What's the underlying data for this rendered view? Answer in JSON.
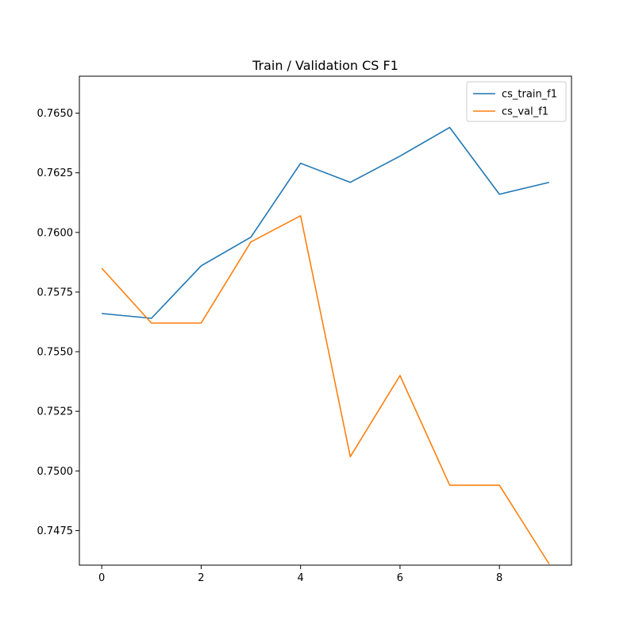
{
  "chart_data": {
    "type": "line",
    "title": "Train / Validation CS F1",
    "xlabel": "",
    "ylabel": "",
    "x": [
      0,
      1,
      2,
      3,
      4,
      5,
      6,
      7,
      8,
      9
    ],
    "xlim": [
      -0.45,
      9.45
    ],
    "ylim": [
      0.74605,
      0.76655
    ],
    "xticks": [
      0,
      2,
      4,
      6,
      8
    ],
    "yticks": [
      0.7475,
      0.75,
      0.7525,
      0.755,
      0.7575,
      0.76,
      0.7625,
      0.765
    ],
    "ytick_labels": [
      "0.7475",
      "0.7500",
      "0.7525",
      "0.7550",
      "0.7575",
      "0.7600",
      "0.7625",
      "0.7650"
    ],
    "grid": false,
    "legend_position": "top-right",
    "series": [
      {
        "name": "cs_train_f1",
        "color": "#1f77b4",
        "values": [
          0.7566,
          0.7564,
          0.7586,
          0.7598,
          0.7629,
          0.7621,
          0.7632,
          0.7644,
          0.7616,
          0.7621
        ]
      },
      {
        "name": "cs_val_f1",
        "color": "#ff7f0e",
        "values": [
          0.7585,
          0.7562,
          0.7562,
          0.7596,
          0.7607,
          0.7506,
          0.754,
          0.7494,
          0.7494,
          0.7461
        ]
      }
    ]
  }
}
